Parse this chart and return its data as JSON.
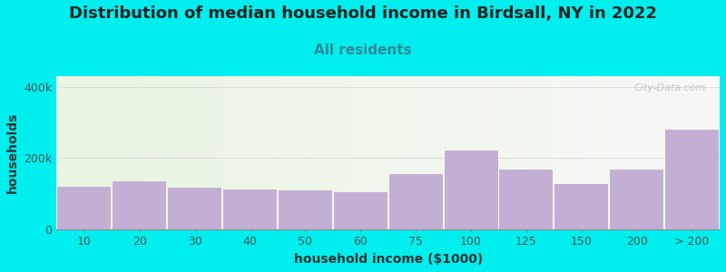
{
  "title": "Distribution of median household income in Birdsall, NY in 2022",
  "subtitle": "All residents",
  "xlabel": "household income ($1000)",
  "ylabel": "households",
  "background_color": "#00EEEE",
  "plot_bg_left": "#e8f5e0",
  "plot_bg_right": "#f8f8f8",
  "bar_color": "#c4afd4",
  "bar_edge_color": "#b09dc0",
  "watermark": "City-Data.com",
  "categories": [
    "10",
    "20",
    "30",
    "40",
    "50",
    "60",
    "75",
    "100",
    "125",
    "150",
    "200",
    "> 200"
  ],
  "values": [
    120000,
    135000,
    118000,
    112000,
    108000,
    103000,
    155000,
    222000,
    168000,
    128000,
    168000,
    280000
  ],
  "ylim": [
    0,
    430000
  ],
  "yticks": [
    0,
    200000,
    400000
  ],
  "ytick_labels": [
    "0",
    "200k",
    "400k"
  ],
  "title_fontsize": 13,
  "subtitle_fontsize": 11,
  "axis_label_fontsize": 10,
  "tick_fontsize": 9,
  "grid_color": "#dddddd",
  "title_color": "#222222",
  "subtitle_color": "#338899",
  "tick_color": "#555555",
  "axis_label_color": "#333333"
}
